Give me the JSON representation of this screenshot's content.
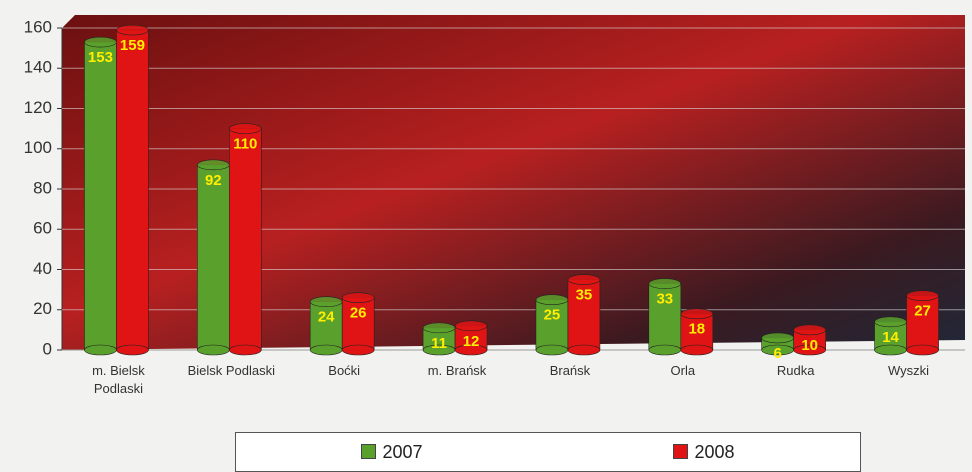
{
  "chart_data": {
    "type": "bar",
    "categories": [
      "m. Bielsk Podlaski",
      "Bielsk Podlaski",
      "Boćki",
      "m. Brańsk",
      "Brańsk",
      "Orla",
      "Rudka",
      "Wyszki"
    ],
    "series": [
      {
        "name": "2007",
        "color": "#5aa02c",
        "values": [
          153,
          92,
          24,
          11,
          25,
          33,
          6,
          14
        ]
      },
      {
        "name": "2008",
        "color": "#e01414",
        "values": [
          159,
          110,
          26,
          12,
          35,
          18,
          10,
          27
        ]
      }
    ],
    "ylim": [
      0,
      160
    ],
    "yticks": [
      0,
      20,
      40,
      60,
      80,
      100,
      120,
      140,
      160
    ],
    "grid": true
  }
}
